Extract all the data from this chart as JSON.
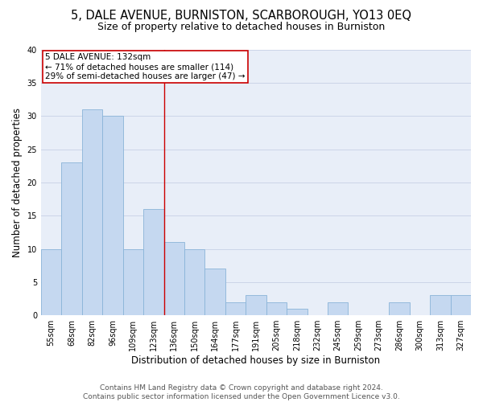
{
  "title1": "5, DALE AVENUE, BURNISTON, SCARBOROUGH, YO13 0EQ",
  "title2": "Size of property relative to detached houses in Burniston",
  "xlabel": "Distribution of detached houses by size in Burniston",
  "ylabel": "Number of detached properties",
  "categories": [
    "55sqm",
    "68sqm",
    "82sqm",
    "96sqm",
    "109sqm",
    "123sqm",
    "136sqm",
    "150sqm",
    "164sqm",
    "177sqm",
    "191sqm",
    "205sqm",
    "218sqm",
    "232sqm",
    "245sqm",
    "259sqm",
    "273sqm",
    "286sqm",
    "300sqm",
    "313sqm",
    "327sqm"
  ],
  "values": [
    10,
    23,
    31,
    30,
    10,
    16,
    11,
    10,
    7,
    2,
    3,
    2,
    1,
    0,
    2,
    0,
    0,
    2,
    0,
    3,
    3
  ],
  "bar_color": "#c5d8f0",
  "bar_edge_color": "#8ab4d8",
  "vline_x_idx": 5.5,
  "vline_color": "#cc0000",
  "annotation_text": "5 DALE AVENUE: 132sqm\n← 71% of detached houses are smaller (114)\n29% of semi-detached houses are larger (47) →",
  "annotation_box_color": "#ffffff",
  "annotation_box_edge_color": "#cc0000",
  "ylim": [
    0,
    40
  ],
  "yticks": [
    0,
    5,
    10,
    15,
    20,
    25,
    30,
    35,
    40
  ],
  "grid_color": "#ccd5e8",
  "bg_color": "#e8eef8",
  "footer1": "Contains HM Land Registry data © Crown copyright and database right 2024.",
  "footer2": "Contains public sector information licensed under the Open Government Licence v3.0.",
  "title1_fontsize": 10.5,
  "title2_fontsize": 9,
  "xlabel_fontsize": 8.5,
  "ylabel_fontsize": 8.5,
  "tick_fontsize": 7,
  "footer_fontsize": 6.5,
  "annotation_fontsize": 7.5
}
